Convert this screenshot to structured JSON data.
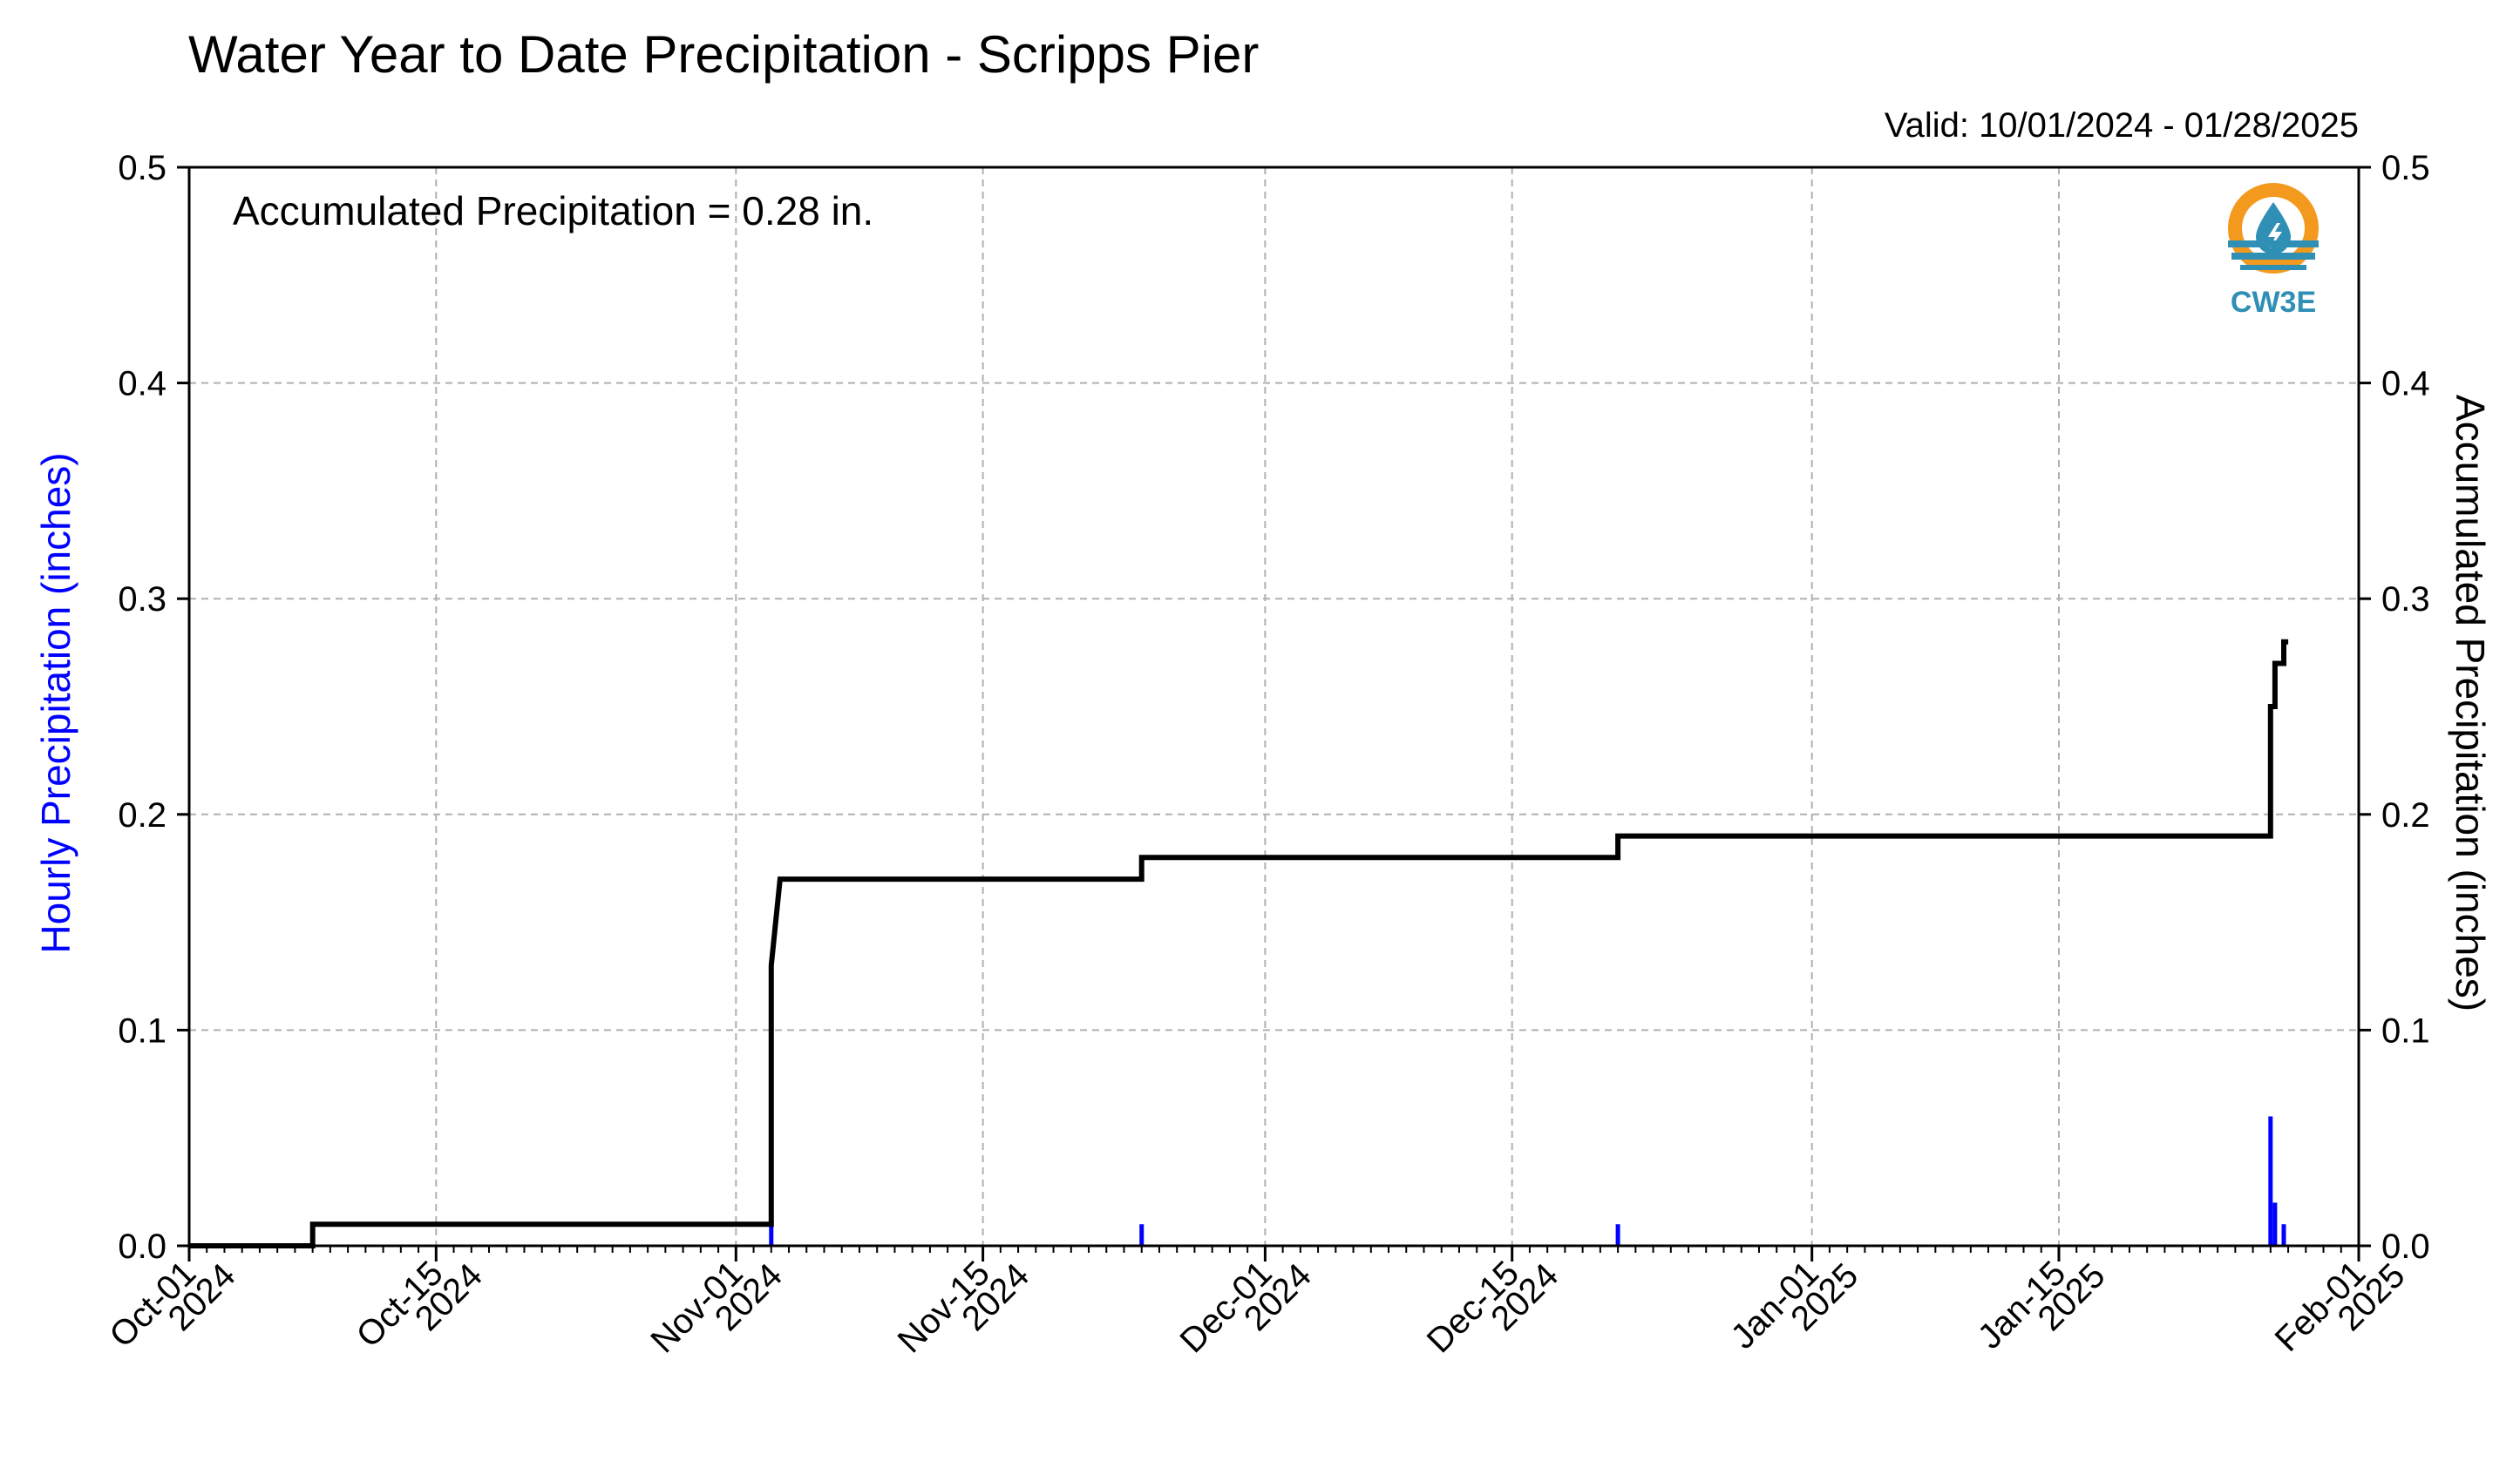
{
  "header": {
    "title": "Water Year to Date Precipitation - Scripps Pier",
    "valid": "Valid: 10/01/2024 - 01/28/2025"
  },
  "logo": {
    "text": "CW3E",
    "icon": "water-drop-lightning-logo",
    "colors": {
      "ring": "#f39a1e",
      "water": "#2f8fb5",
      "text": "#2f8fb5"
    }
  },
  "chart_data": {
    "type": "line",
    "title": "Water Year to Date Precipitation - Scripps Pier",
    "annotation": "Accumulated Precipitation = 0.28 in.",
    "ylabel_left": "Hourly Precipitation (inches)",
    "ylabel_right": "Accumulated Precipitation (inches)",
    "ylim": [
      0,
      0.5
    ],
    "xlim": [
      "2024-10-01",
      "2025-02-01"
    ],
    "yticks": [
      "0.0",
      "0.1",
      "0.2",
      "0.3",
      "0.4",
      "0.5"
    ],
    "xticks": [
      {
        "date": "2024-10-01",
        "label": [
          "Oct-01",
          "2024"
        ]
      },
      {
        "date": "2024-10-15",
        "label": [
          "Oct-15",
          "2024"
        ]
      },
      {
        "date": "2024-11-01",
        "label": [
          "Nov-01",
          "2024"
        ]
      },
      {
        "date": "2024-11-15",
        "label": [
          "Nov-15",
          "2024"
        ]
      },
      {
        "date": "2024-12-01",
        "label": [
          "Dec-01",
          "2024"
        ]
      },
      {
        "date": "2024-12-15",
        "label": [
          "Dec-15",
          "2024"
        ]
      },
      {
        "date": "2025-01-01",
        "label": [
          "Jan-01",
          "2025"
        ]
      },
      {
        "date": "2025-01-15",
        "label": [
          "Jan-15",
          "2025"
        ]
      },
      {
        "date": "2025-02-01",
        "label": [
          "Feb-01",
          "2025"
        ]
      }
    ],
    "grid": true,
    "series": [
      {
        "kind": "accumulated-step",
        "color": "#000000",
        "points": [
          {
            "x": "2024-10-01",
            "y": 0.0
          },
          {
            "x": "2024-10-08",
            "y": 0.0
          },
          {
            "x": "2024-10-08",
            "y": 0.01
          },
          {
            "x": "2024-11-03",
            "y": 0.01
          },
          {
            "x": "2024-11-03",
            "y": 0.13
          },
          {
            "x": "2024-11-03 12:00",
            "y": 0.17
          },
          {
            "x": "2024-11-24",
            "y": 0.17
          },
          {
            "x": "2024-11-24",
            "y": 0.18
          },
          {
            "x": "2024-12-21",
            "y": 0.18
          },
          {
            "x": "2024-12-21",
            "y": 0.19
          },
          {
            "x": "2025-01-27",
            "y": 0.19
          },
          {
            "x": "2025-01-27",
            "y": 0.25
          },
          {
            "x": "2025-01-27 06:00",
            "y": 0.25
          },
          {
            "x": "2025-01-27 06:00",
            "y": 0.27
          },
          {
            "x": "2025-01-27 18:00",
            "y": 0.27
          },
          {
            "x": "2025-01-27 18:00",
            "y": 0.28
          },
          {
            "x": "2025-01-28",
            "y": 0.28
          }
        ]
      },
      {
        "kind": "hourly-bars",
        "color": "#0000ff",
        "bars": [
          {
            "x": "2024-11-03",
            "y": 0.01
          },
          {
            "x": "2024-11-24",
            "y": 0.01
          },
          {
            "x": "2024-12-21",
            "y": 0.01
          },
          {
            "x": "2025-01-27",
            "y": 0.06
          },
          {
            "x": "2025-01-27 06:00",
            "y": 0.02
          },
          {
            "x": "2025-01-27 18:00",
            "y": 0.01
          }
        ]
      }
    ]
  },
  "colors": {
    "left_axis_label": "#0000ff",
    "grid": "#b0b0b0"
  }
}
